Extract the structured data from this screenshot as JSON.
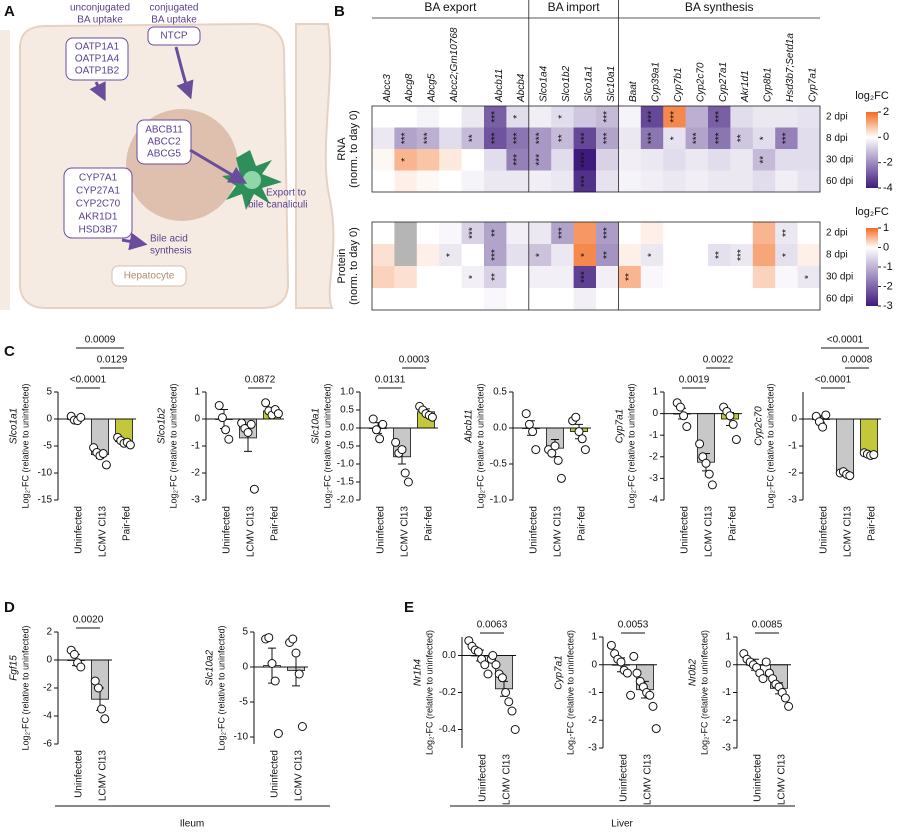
{
  "diagram": {
    "label": "A",
    "uptake_unconjugated": [
      "unconjugated",
      "BA uptake"
    ],
    "uptake_conjugated": [
      "conjugated",
      "BA uptake"
    ],
    "box_uptake": [
      "OATP1A1",
      "OATP1A4",
      "OATP1B2"
    ],
    "box_ntcp": "NTCP",
    "box_export": [
      "ABCB11",
      "ABCC2",
      "ABCG5"
    ],
    "export": [
      "Export to",
      "bile canaliculi"
    ],
    "box_synthesis": [
      "CYP7A1",
      "CYP27A1",
      "CYP2C70",
      "AKR1D1",
      "HSD3B7"
    ],
    "synthesis": [
      "Bile acid",
      "synthesis"
    ],
    "cell": "Hepatocyte"
  },
  "panel_labels": [
    "B",
    "C",
    "D",
    "E"
  ],
  "captions": [
    "Ileum",
    "Liver"
  ],
  "chart_data": [
    {
      "type": "heatmap",
      "ylabel": [
        "RNA",
        "(norm. to day 0)"
      ],
      "groups": [
        {
          "name": "BA export",
          "span": 7
        },
        {
          "name": "BA import",
          "span": 4
        },
        {
          "name": "BA synthesis",
          "span": 9
        }
      ],
      "columns": [
        "Abcc3",
        "Abcg8",
        "Abcg5",
        "Abcc2;Gm10768",
        null,
        "Abcb11",
        "Abcb4",
        "Slco1a4",
        "Slco1b2",
        "Slco1a1",
        "Slc10a1",
        "Baat",
        "Cyp39a1",
        "Cyp7b1",
        "Cyp2c70",
        "Cyp27a1",
        "Akr1d1",
        "Cyp8b1",
        "Hsd3b7;Setd1a",
        "Cyp7a1"
      ],
      "rows": [
        "2 dpi",
        "8 dpi",
        "30 dpi",
        "60 dpi"
      ],
      "values": [
        [
          0,
          0,
          -0.2,
          0,
          -0.4,
          -2.8,
          -0.6,
          -0.3,
          -0.6,
          -1.0,
          -1.2,
          -0.2,
          -3.2,
          1.6,
          -1.4,
          -2.8,
          -0.6,
          -0.4,
          -0.4,
          -0.5
        ],
        [
          -0.4,
          -1.6,
          -1.4,
          -0.6,
          -1.2,
          -3.0,
          -2.4,
          -1.8,
          -1.2,
          -3.2,
          -1.6,
          -0.4,
          -2.4,
          -0.5,
          -1.6,
          -2.4,
          -1.0,
          -0.6,
          -2.2,
          -0.6
        ],
        [
          0.1,
          1.0,
          0.8,
          0.3,
          0,
          -0.6,
          -2.2,
          -1.8,
          -0.6,
          -4.0,
          -0.8,
          -0.3,
          -0.4,
          -0.6,
          -0.4,
          -0.6,
          -0.4,
          -1.2,
          -0.6,
          -0.6
        ],
        [
          0,
          0.2,
          0.1,
          0,
          -0.2,
          -0.4,
          -0.4,
          -0.3,
          -0.4,
          -3.6,
          -0.5,
          -0.2,
          -0.3,
          -0.4,
          -0.3,
          -0.4,
          -0.4,
          -0.6,
          -0.3,
          -0.5
        ]
      ],
      "stars": [
        [
          null,
          null,
          null,
          null,
          null,
          "***",
          "*",
          null,
          "*",
          null,
          "***",
          null,
          "***",
          "***",
          null,
          "***",
          null,
          null,
          null,
          null
        ],
        [
          null,
          "***",
          "***",
          null,
          "**",
          "***",
          "***",
          "***",
          "**",
          "***",
          "***",
          null,
          "***",
          "*",
          "***",
          "***",
          "**",
          "*",
          "***",
          null
        ],
        [
          null,
          "*",
          null,
          null,
          null,
          null,
          "***",
          "***",
          null,
          "****",
          null,
          null,
          null,
          null,
          null,
          null,
          null,
          "**",
          null,
          null
        ],
        [
          null,
          null,
          null,
          null,
          null,
          null,
          null,
          null,
          null,
          "***",
          null,
          null,
          null,
          null,
          null,
          null,
          null,
          null,
          null,
          null
        ]
      ],
      "clim": [
        -4,
        2
      ],
      "cbar_title": "log₂FC",
      "cbar_ticks": [
        2,
        0,
        -2,
        -4
      ],
      "colors": {
        "low": "#3f1a7d",
        "zero": "#ffffff",
        "high": "#f26b21"
      },
      "na_color": "#b5b5b5"
    },
    {
      "type": "heatmap",
      "ylabel": [
        "Protein",
        "(norm. to day 0)"
      ],
      "rows": [
        "2 dpi",
        "8 dpi",
        "30 dpi",
        "60 dpi"
      ],
      "values": [
        [
          0,
          null,
          0,
          -0.1,
          -0.6,
          -1.2,
          -0.2,
          -0.3,
          -1.2,
          0.7,
          -1.3,
          0,
          0.1,
          0,
          0,
          0,
          0,
          0.5,
          -0.3,
          0
        ],
        [
          0.2,
          null,
          0.1,
          -0.3,
          0,
          -1.2,
          -0.4,
          -0.8,
          -0.3,
          0.8,
          -1.4,
          0.1,
          -0.3,
          0,
          0,
          -0.4,
          -0.3,
          0.6,
          -0.4,
          0.1
        ],
        [
          0.3,
          0.2,
          0,
          0,
          -0.2,
          -0.6,
          0,
          -0.2,
          -0.2,
          -2.5,
          -0.2,
          0.5,
          -0.1,
          0,
          0,
          0,
          0,
          0.3,
          -0.1,
          -0.3
        ],
        [
          0,
          0,
          0,
          0,
          0,
          -0.1,
          0,
          0,
          0,
          -0.2,
          0,
          0,
          0,
          0,
          0,
          0,
          0,
          0,
          0,
          0
        ]
      ],
      "stars": [
        [
          null,
          null,
          null,
          null,
          "***",
          "**",
          null,
          null,
          "***",
          null,
          "***",
          null,
          null,
          null,
          null,
          null,
          null,
          null,
          "**",
          null
        ],
        [
          null,
          null,
          null,
          "*",
          null,
          "***",
          null,
          "*",
          null,
          "*",
          "**",
          null,
          "*",
          null,
          null,
          "**",
          "***",
          null,
          "*",
          null
        ],
        [
          null,
          null,
          null,
          null,
          "*",
          "**",
          null,
          null,
          null,
          "***",
          null,
          "**",
          null,
          null,
          null,
          null,
          null,
          null,
          null,
          "*"
        ],
        [
          null,
          null,
          null,
          null,
          null,
          null,
          null,
          null,
          null,
          null,
          null,
          null,
          null,
          null,
          null,
          null,
          null,
          null,
          null,
          null
        ]
      ],
      "clim": [
        -3,
        1
      ],
      "cbar_title": "log₂FC",
      "cbar_ticks": [
        1,
        0,
        -1,
        -2,
        -3
      ],
      "colors": {
        "low": "#3f1a7d",
        "zero": "#ffffff",
        "high": "#f26b21"
      },
      "na_color": "#b5b5b5"
    },
    {
      "type": "bar",
      "gene": "Slco1a1",
      "ylabel": "Log₂-FC (relative to uninfected)",
      "categories": [
        "Uninfected",
        "LCMV Cl13",
        "Pair-fed"
      ],
      "values": [
        0,
        -6.6,
        -4.2
      ],
      "errors": [
        0.3,
        0.7,
        0.3
      ],
      "points": [
        [
          0.5,
          -0.2,
          -0.3,
          0.3
        ],
        [
          -5.3,
          -6.2,
          -6.8,
          -6.4,
          -8.5
        ],
        [
          -3.4,
          -4,
          -4.5,
          -4.3,
          -4.8
        ]
      ],
      "colors": [
        "#ffffff",
        "#c8c8c8",
        "#c4c73b"
      ],
      "ylim": [
        -15,
        5
      ],
      "yticks": [
        5,
        0,
        -5,
        -10,
        -15
      ],
      "comparisons": [
        {
          "between": [
            0,
            1
          ],
          "label": "<0.0001"
        },
        {
          "between": [
            1,
            2
          ],
          "label": "0.0129"
        },
        {
          "between": [
            0,
            2
          ],
          "label": "0.0009"
        }
      ]
    },
    {
      "type": "bar",
      "gene": "Slco1b2",
      "ylabel": "Log₂-FC (relative to uninfected)",
      "categories": [
        "Uninfected",
        "LCMV Cl13",
        "Pair-fed"
      ],
      "values": [
        0,
        -0.7,
        0.3
      ],
      "errors": [
        0.35,
        0.5,
        0.12
      ],
      "points": [
        [
          0.5,
          0.05,
          -0.4,
          -0.75
        ],
        [
          -0.15,
          -0.35,
          -0.5,
          -0.2,
          -2.6
        ],
        [
          0.6,
          0.3,
          0.15,
          0.35,
          0.2
        ]
      ],
      "colors": [
        "#ffffff",
        "#c8c8c8",
        "#c4c73b"
      ],
      "ylim": [
        -3,
        1
      ],
      "yticks": [
        1,
        0,
        -1,
        -2,
        -3
      ],
      "comparisons": [
        {
          "between": [
            1,
            2
          ],
          "label": "0.0872"
        }
      ]
    },
    {
      "type": "bar",
      "gene": "Slc10a1",
      "ylabel": "Log₂-FC (relative to uninfected)",
      "categories": [
        "Uninfected",
        "LCMV Cl13",
        "Pair-fed"
      ],
      "values": [
        0,
        -0.8,
        0.45
      ],
      "errors": [
        0.15,
        0.2,
        0.08
      ],
      "points": [
        [
          0.25,
          -0.05,
          -0.3,
          0.1
        ],
        [
          -0.4,
          -0.7,
          -0.6,
          -1.25,
          -1.5
        ],
        [
          0.6,
          0.5,
          0.4,
          0.35,
          0.3
        ]
      ],
      "colors": [
        "#ffffff",
        "#c8c8c8",
        "#c4c73b"
      ],
      "ylim": [
        -2,
        1
      ],
      "yticks": [
        {
          "value": 1,
          "label": "1.0"
        },
        0.5,
        {
          "value": 0,
          "label": "0.0"
        },
        -0.5,
        {
          "value": -1,
          "label": "-1.0"
        },
        -1.5,
        {
          "value": -2,
          "label": "-2.0"
        }
      ],
      "comparisons": [
        {
          "between": [
            0,
            1
          ],
          "label": "0.0131"
        },
        {
          "between": [
            1,
            2
          ],
          "label": "0.0003"
        }
      ]
    },
    {
      "type": "bar",
      "gene": "Abcb11",
      "ylabel": "Log₂-FC (relative to uninfected)",
      "categories": [
        "Uninfected",
        "LCMV Cl13",
        "Pair-fed"
      ],
      "values": [
        0,
        -0.28,
        -0.05
      ],
      "errors": [
        0.1,
        0.12,
        0.1
      ],
      "points": [
        [
          0.2,
          0.05,
          -0.05,
          -0.3
        ],
        [
          -0.3,
          -0.35,
          -0.25,
          -0.45,
          -0.7
        ],
        [
          0.1,
          0.15,
          -0.05,
          -0.15,
          -0.3
        ]
      ],
      "colors": [
        "#ffffff",
        "#c8c8c8",
        "#c4c73b"
      ],
      "ylim": [
        -1,
        0.5
      ],
      "yticks": [
        0.5,
        {
          "value": 0,
          "label": "0.0"
        },
        -0.5,
        {
          "value": -1,
          "label": "-1.0"
        }
      ],
      "comparisons": []
    },
    {
      "type": "bar",
      "gene": "Cyp7a1",
      "ylabel": "Log₂-FC (relative to uninfected)",
      "categories": [
        "Uninfected",
        "LCMV Cl13",
        "Pair-fed"
      ],
      "values": [
        0,
        -2.25,
        -0.25
      ],
      "errors": [
        0.25,
        0.4,
        0.3
      ],
      "points": [
        [
          0.5,
          0.3,
          -0.1,
          -0.6
        ],
        [
          -1.4,
          -2,
          -2.3,
          -2.8,
          -3.3
        ],
        [
          0.3,
          0.1,
          -0.1,
          -0.5,
          -1.2
        ]
      ],
      "colors": [
        "#ffffff",
        "#c8c8c8",
        "#c4c73b"
      ],
      "ylim": [
        -4,
        1
      ],
      "yticks": [
        1,
        0,
        -1,
        -2,
        -3,
        -4
      ],
      "comparisons": [
        {
          "between": [
            0,
            1
          ],
          "label": "0.0019"
        },
        {
          "between": [
            1,
            2
          ],
          "label": "0.0022"
        }
      ]
    },
    {
      "type": "bar",
      "gene": "Cyp2c70",
      "ylabel": "Log₂-FC (relative to uninfected)",
      "categories": [
        "Uninfected",
        "LCMV Cl13",
        "Pair-fed"
      ],
      "values": [
        0,
        -2.05,
        -1.3
      ],
      "errors": [
        0.12,
        0.05,
        0.04
      ],
      "points": [
        [
          0.1,
          -0.1,
          -0.3,
          0.15
        ],
        [
          -2,
          -1.95,
          -2.05,
          -2.1
        ],
        [
          -1.25,
          -1.3,
          -1.35,
          -1.32
        ]
      ],
      "colors": [
        "#ffffff",
        "#c8c8c8",
        "#c4c73b"
      ],
      "ylim": [
        -3,
        1
      ],
      "yticks": [
        0,
        -1,
        -2,
        -3
      ],
      "comparisons": [
        {
          "between": [
            0,
            1
          ],
          "label": "<0.0001"
        },
        {
          "between": [
            1,
            2
          ],
          "label": "0.0008"
        },
        {
          "between": [
            0,
            2
          ],
          "label": "<0.0001"
        }
      ]
    },
    {
      "type": "bar",
      "gene": "Fgf15",
      "ylabel": "Log₂-FC (relative to uninfected)",
      "categories": [
        "Uninfected",
        "LCMV Cl13"
      ],
      "values": [
        0,
        -2.8
      ],
      "errors": [
        0.4,
        0.8
      ],
      "points": [
        [
          0.7,
          0.4,
          -0.2,
          -0.5
        ],
        [
          -1.5,
          -2,
          -3.5,
          -4.2
        ]
      ],
      "colors": [
        "#ffffff",
        "#c8c8c8"
      ],
      "ylim": [
        -6,
        2
      ],
      "yticks": [
        2,
        0,
        -2,
        -4,
        -6
      ],
      "comparisons": [
        {
          "between": [
            0,
            1
          ],
          "label": "0.0020"
        }
      ]
    },
    {
      "type": "bar",
      "gene": "Slc10a2",
      "ylabel": "Log₂-FC (relative to uninfected)",
      "categories": [
        "Uninfected",
        "LCMV Cl13"
      ],
      "values": [
        0.2,
        -0.5
      ],
      "errors": [
        2.5,
        2.2
      ],
      "points": [
        [
          4,
          4.2,
          0.5,
          -2,
          -9.5
        ],
        [
          3.5,
          4,
          2,
          -1,
          -8.5
        ]
      ],
      "colors": [
        "#ffffff",
        "#c8c8c8"
      ],
      "ylim": [
        -11,
        5
      ],
      "yticks": [
        5,
        0,
        -5,
        -10
      ],
      "comparisons": []
    },
    {
      "type": "bar",
      "gene": "Nr1h4",
      "ylabel": "Log₂-FC (relative to uninfected)",
      "categories": [
        "Uninfected",
        "LCMV Cl13"
      ],
      "values": [
        0,
        -0.18
      ],
      "errors": [
        0.03,
        0.04
      ],
      "points": [
        [
          0.08,
          0.05,
          0.03,
          0.02,
          -0.02,
          -0.05,
          -0.1,
          -0.02
        ],
        [
          0.0,
          -0.05,
          -0.1,
          -0.12,
          -0.2,
          -0.25,
          -0.3,
          -0.4
        ]
      ],
      "colors": [
        "#ffffff",
        "#c8c8c8"
      ],
      "ylim": [
        -0.5,
        0.1
      ],
      "yticks": [
        {
          "value": 0,
          "label": "0.0"
        },
        -0.2,
        -0.4
      ],
      "comparisons": [
        {
          "between": [
            0,
            1
          ],
          "label": "0.0063"
        }
      ]
    },
    {
      "type": "bar",
      "gene": "Cyp7a1",
      "ylabel": "Log₂-FC (relative to uninfected)",
      "categories": [
        "Uninfected",
        "LCMV Cl13"
      ],
      "values": [
        0,
        -0.9
      ],
      "errors": [
        0.25,
        0.3
      ],
      "points": [
        [
          0.7,
          0.4,
          0.2,
          0.1,
          -0.2,
          -0.3,
          -1.1
        ],
        [
          0.3,
          -0.3,
          -0.6,
          -0.8,
          -1.0,
          -1.1,
          -1.5,
          -2.3
        ]
      ],
      "colors": [
        "#ffffff",
        "#c8c8c8"
      ],
      "ylim": [
        -3,
        1
      ],
      "yticks": [
        1,
        0,
        -1,
        -2,
        -3
      ],
      "comparisons": [
        {
          "between": [
            0,
            1
          ],
          "label": "0.0053"
        }
      ]
    },
    {
      "type": "bar",
      "gene": "Nr0b2",
      "ylabel": "Log₂-FC (relative to uninfected)",
      "categories": [
        "Uninfected",
        "LCMV Cl13"
      ],
      "values": [
        0,
        -0.85
      ],
      "errors": [
        0.2,
        0.2
      ],
      "points": [
        [
          0.4,
          0.2,
          0.1,
          0,
          -0.1,
          -0.3,
          -0.5,
          0.1
        ],
        [
          -0.3,
          -0.5,
          -0.7,
          -0.8,
          -1,
          -1.2,
          -1.5
        ]
      ],
      "colors": [
        "#ffffff",
        "#c8c8c8"
      ],
      "ylim": [
        -3,
        1
      ],
      "yticks": [
        1,
        0,
        -1,
        -2,
        -3
      ],
      "comparisons": [
        {
          "between": [
            0,
            1
          ],
          "label": "0.0085"
        }
      ]
    }
  ]
}
